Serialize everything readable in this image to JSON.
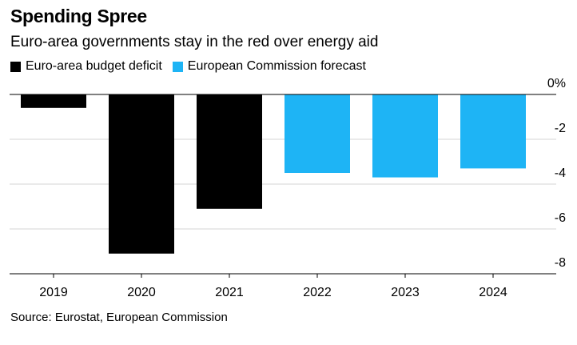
{
  "chart_data": {
    "type": "bar",
    "title": "Spending Spree",
    "subtitle": "Euro-area governments stay in the red over energy aid",
    "categories": [
      "2019",
      "2020",
      "2021",
      "2022",
      "2023",
      "2024"
    ],
    "series": [
      {
        "name": "Euro-area budget deficit",
        "color": "#000000",
        "values": [
          -0.6,
          -7.1,
          -5.1,
          null,
          null,
          null
        ]
      },
      {
        "name": "European Commission forecast",
        "color": "#1eb4f5",
        "values": [
          null,
          null,
          null,
          -3.5,
          -3.7,
          -3.3
        ]
      }
    ],
    "ylim": [
      -8,
      0
    ],
    "yticks": [
      0,
      -2,
      -4,
      -6,
      -8
    ],
    "ytick_labels": [
      "0%",
      "-2",
      "-4",
      "-6",
      "-8"
    ],
    "ylabel": "",
    "xlabel": "",
    "grid": true,
    "legend_position": "top-left",
    "y_axis_position": "right",
    "source": "Source: Eurostat, European Commission"
  }
}
